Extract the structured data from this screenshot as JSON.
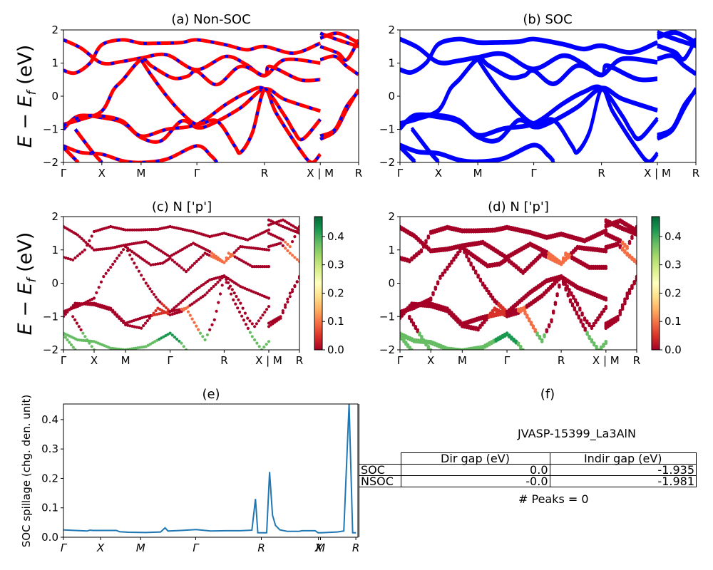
{
  "chart_data": [
    {
      "id": "a",
      "type": "line",
      "title": "(a) Non-SOC",
      "ylabel": "E − E_f (eV)",
      "ylim": [
        -2,
        2
      ],
      "yticks": [
        -2,
        -1,
        0,
        1,
        2
      ],
      "xtick_labels": [
        "Γ",
        "X",
        "M",
        "Γ",
        "R",
        "X | M",
        "R"
      ],
      "xtick_positions": [
        0,
        0.13,
        0.263,
        0.452,
        0.681,
        0.87,
        1.0
      ],
      "style": "red line with blue dashes (spin up / spin down overlay)",
      "colors": {
        "primary": "#ff0000",
        "secondary": "#0000ff"
      },
      "bands": [
        [
          [
            0,
            1.7
          ],
          [
            0.06,
            1.45
          ],
          [
            0.13,
            1.0
          ],
          [
            0.2,
            1.05
          ],
          [
            0.263,
            1.15
          ],
          [
            0.35,
            1.25
          ],
          [
            0.45,
            0.8
          ],
          [
            0.55,
            1.2
          ],
          [
            0.62,
            0.95
          ],
          [
            0.681,
            0.62
          ],
          [
            0.75,
            1.1
          ],
          [
            0.87,
            1.0
          ]
        ],
        [
          [
            0,
            0.78
          ],
          [
            0.04,
            0.7
          ],
          [
            0.09,
            1.0
          ],
          [
            0.13,
            1.55
          ],
          [
            0.2,
            1.7
          ],
          [
            0.263,
            1.6
          ],
          [
            0.32,
            1.6
          ],
          [
            0.4,
            1.62
          ],
          [
            0.452,
            1.7
          ],
          [
            0.55,
            1.55
          ],
          [
            0.62,
            1.4
          ],
          [
            0.681,
            1.5
          ],
          [
            0.78,
            1.3
          ],
          [
            0.87,
            1.6
          ]
        ],
        [
          [
            0,
            -0.85
          ],
          [
            0.06,
            -0.7
          ],
          [
            0.13,
            -0.45
          ],
          [
            0.17,
            0.2
          ],
          [
            0.2,
            0.48
          ],
          [
            0.263,
            1.1
          ],
          [
            0.3,
            0.9
          ],
          [
            0.37,
            0.55
          ],
          [
            0.42,
            0.6
          ],
          [
            0.452,
            0.75
          ],
          [
            0.52,
            0.35
          ],
          [
            0.6,
            0.9
          ],
          [
            0.681,
            0.62
          ],
          [
            0.7,
            0.9
          ],
          [
            0.8,
            0.5
          ],
          [
            0.87,
            0.5
          ]
        ],
        [
          [
            0,
            -1.0
          ],
          [
            0.05,
            -0.6
          ],
          [
            0.13,
            -0.65
          ],
          [
            0.2,
            -0.8
          ],
          [
            0.263,
            -1.25
          ],
          [
            0.33,
            -1.35
          ],
          [
            0.4,
            -0.75
          ],
          [
            0.452,
            -0.95
          ],
          [
            0.5,
            -0.85
          ],
          [
            0.6,
            -0.35
          ],
          [
            0.681,
            0.22
          ],
          [
            0.75,
            -0.1
          ],
          [
            0.87,
            -0.45
          ]
        ],
        [
          [
            0,
            -0.9
          ],
          [
            0.06,
            -0.62
          ],
          [
            0.13,
            -0.6
          ],
          [
            0.2,
            -0.75
          ],
          [
            0.263,
            -1.2
          ],
          [
            0.35,
            -1.0
          ],
          [
            0.452,
            -0.85
          ],
          [
            0.55,
            -0.25
          ],
          [
            0.62,
            0.1
          ],
          [
            0.681,
            0.22
          ],
          [
            0.75,
            -0.6
          ],
          [
            0.78,
            -1.05
          ],
          [
            0.81,
            -1.3
          ],
          [
            0.87,
            -0.7
          ]
        ],
        [
          [
            0.263,
            1.1
          ],
          [
            0.3,
            0.6
          ],
          [
            0.35,
            0.0
          ],
          [
            0.4,
            -0.5
          ],
          [
            0.452,
            -0.85
          ],
          [
            0.52,
            -0.75
          ],
          [
            0.58,
            -1.5
          ],
          [
            0.6,
            -1.7
          ],
          [
            0.64,
            -1.1
          ],
          [
            0.681,
            0.2
          ],
          [
            0.72,
            -0.5
          ],
          [
            0.8,
            -1.6
          ],
          [
            0.84,
            -2.0
          ],
          [
            0.87,
            -1.75
          ]
        ],
        [
          [
            0,
            -1.5
          ],
          [
            0.06,
            -1.7
          ],
          [
            0.13,
            -1.75
          ],
          [
            0.2,
            -1.95
          ],
          [
            0.263,
            -2.0
          ],
          [
            0.35,
            -1.9
          ],
          [
            0.452,
            -1.5
          ],
          [
            0.5,
            -1.8
          ],
          [
            0.52,
            -2.0
          ]
        ],
        [
          [
            0,
            -1.55
          ],
          [
            0.05,
            -2.0
          ]
        ],
        [
          [
            0.04,
            -1.0
          ],
          [
            0.1,
            -1.7
          ],
          [
            0.13,
            -2.0
          ]
        ],
        [
          [
            0.87,
            -1.3
          ],
          [
            0.92,
            -1.05
          ],
          [
            0.96,
            -0.4
          ],
          [
            1.0,
            0.2
          ]
        ],
        [
          [
            0.87,
            -1.2
          ],
          [
            0.92,
            -1.0
          ],
          [
            0.96,
            -0.3
          ],
          [
            1.0,
            0.15
          ]
        ],
        [
          [
            0.87,
            1.1
          ],
          [
            0.92,
            1.2
          ],
          [
            0.96,
            0.9
          ],
          [
            1.0,
            0.65
          ]
        ],
        [
          [
            0.87,
            1.9
          ],
          [
            0.93,
            1.7
          ],
          [
            1.0,
            1.5
          ]
        ],
        [
          [
            0.87,
            1.5
          ],
          [
            0.93,
            1.3
          ],
          [
            0.96,
            1.1
          ],
          [
            1.0,
            1.7
          ]
        ],
        [
          [
            0.87,
            1.75
          ],
          [
            0.93,
            1.9
          ],
          [
            1.0,
            1.6
          ]
        ]
      ]
    },
    {
      "id": "b",
      "type": "line",
      "title": "(b) SOC",
      "ylim": [
        -2,
        2
      ],
      "yticks": [
        -2,
        -1,
        0,
        1,
        2
      ],
      "xtick_labels": [
        "Γ",
        "X",
        "M",
        "Γ",
        "R",
        "X | M",
        "R"
      ],
      "xtick_positions": [
        0,
        0.13,
        0.263,
        0.452,
        0.681,
        0.87,
        1.0
      ],
      "style": "solid thick blue bands (spin-split)",
      "colors": {
        "primary": "#0000ff"
      }
    },
    {
      "id": "c",
      "type": "scatter",
      "title": "(c)  N ['p']",
      "ylabel": "E − E_f (eV)",
      "ylim": [
        -2,
        2
      ],
      "yticks": [
        -2,
        -1,
        0,
        1,
        2
      ],
      "xtick_labels": [
        "Γ",
        "X",
        "M",
        "Γ",
        "R",
        "X | M",
        "R"
      ],
      "xtick_positions": [
        0,
        0.13,
        0.263,
        0.452,
        0.681,
        0.87,
        1.0
      ],
      "colorbar": {
        "cmap": "RdYlGn",
        "range": [
          0,
          0.47
        ],
        "ticks": [
          0.0,
          0.1,
          0.2,
          0.3,
          0.4
        ]
      },
      "note": "dots colored by N p-orbital projection; mostly ~0 (dark red), green (~0.35–0.45) near -1.5 to -2 eV"
    },
    {
      "id": "d",
      "type": "scatter",
      "title": "(d) N ['p']",
      "ylim": [
        -2,
        2
      ],
      "yticks": [
        -2,
        -1,
        0,
        1,
        2
      ],
      "xtick_labels": [
        "Γ",
        "X",
        "M",
        "Γ",
        "R",
        "X | M",
        "R"
      ],
      "xtick_positions": [
        0,
        0.13,
        0.263,
        0.452,
        0.681,
        0.87,
        1.0
      ],
      "colorbar": {
        "cmap": "RdYlGn",
        "range": [
          0,
          0.47
        ],
        "ticks": [
          0.0,
          0.1,
          0.2,
          0.3,
          0.4
        ]
      }
    },
    {
      "id": "e",
      "type": "line",
      "title": "(e)",
      "ylabel": "SOC spillage (chg. den. unit)",
      "ylim": [
        0,
        0.453
      ],
      "yticks": [
        0.0,
        0.1,
        0.2,
        0.3,
        0.4
      ],
      "xtick_labels": [
        "Γ",
        "X",
        "M",
        "Γ",
        "R",
        "X",
        "M",
        "R"
      ],
      "xtick_positions": [
        0,
        0.126,
        0.262,
        0.449,
        0.672,
        0.866,
        0.873,
        0.993
      ],
      "color": "#1f77b4",
      "x": [
        0,
        0.04,
        0.08,
        0.09,
        0.1,
        0.18,
        0.19,
        0.22,
        0.28,
        0.33,
        0.345,
        0.355,
        0.4,
        0.45,
        0.5,
        0.55,
        0.6,
        0.64,
        0.652,
        0.66,
        0.672,
        0.69,
        0.7,
        0.71,
        0.72,
        0.735,
        0.76,
        0.8,
        0.81,
        0.855,
        0.865,
        0.875,
        0.93,
        0.952,
        0.97,
        0.982,
        0.993
      ],
      "y": [
        0.025,
        0.023,
        0.021,
        0.024,
        0.023,
        0.023,
        0.019,
        0.017,
        0.016,
        0.018,
        0.032,
        0.021,
        0.023,
        0.026,
        0.021,
        0.022,
        0.022,
        0.024,
        0.13,
        0.015,
        0.015,
        0.015,
        0.222,
        0.075,
        0.04,
        0.025,
        0.02,
        0.02,
        0.022,
        0.022,
        0.015,
        0.015,
        0.018,
        0.021,
        0.453,
        0.015,
        0.015
      ]
    }
  ],
  "panel_f": {
    "title": "(f)",
    "material": "JVASP-15399_La3AlN",
    "table": {
      "columns": [
        "Dir gap (eV)",
        "Indir gap (eV)"
      ],
      "rows": [
        {
          "label": "SOC",
          "dir": "0.0",
          "indir": "-1.935"
        },
        {
          "label": "NSOC",
          "dir": "-0.0",
          "indir": "-1.981"
        }
      ]
    },
    "peaks_text": "# Peaks = 0"
  },
  "labels": {
    "ylabel_top": "(eV)",
    "ytick_labels": [
      "−2",
      "−1",
      "0",
      "1",
      "2"
    ],
    "cbar_ticks": [
      "0.0",
      "0.1",
      "0.2",
      "0.3",
      "0.4"
    ],
    "spill_ticks": [
      "0.0",
      "0.1",
      "0.2",
      "0.3",
      "0.4"
    ]
  }
}
